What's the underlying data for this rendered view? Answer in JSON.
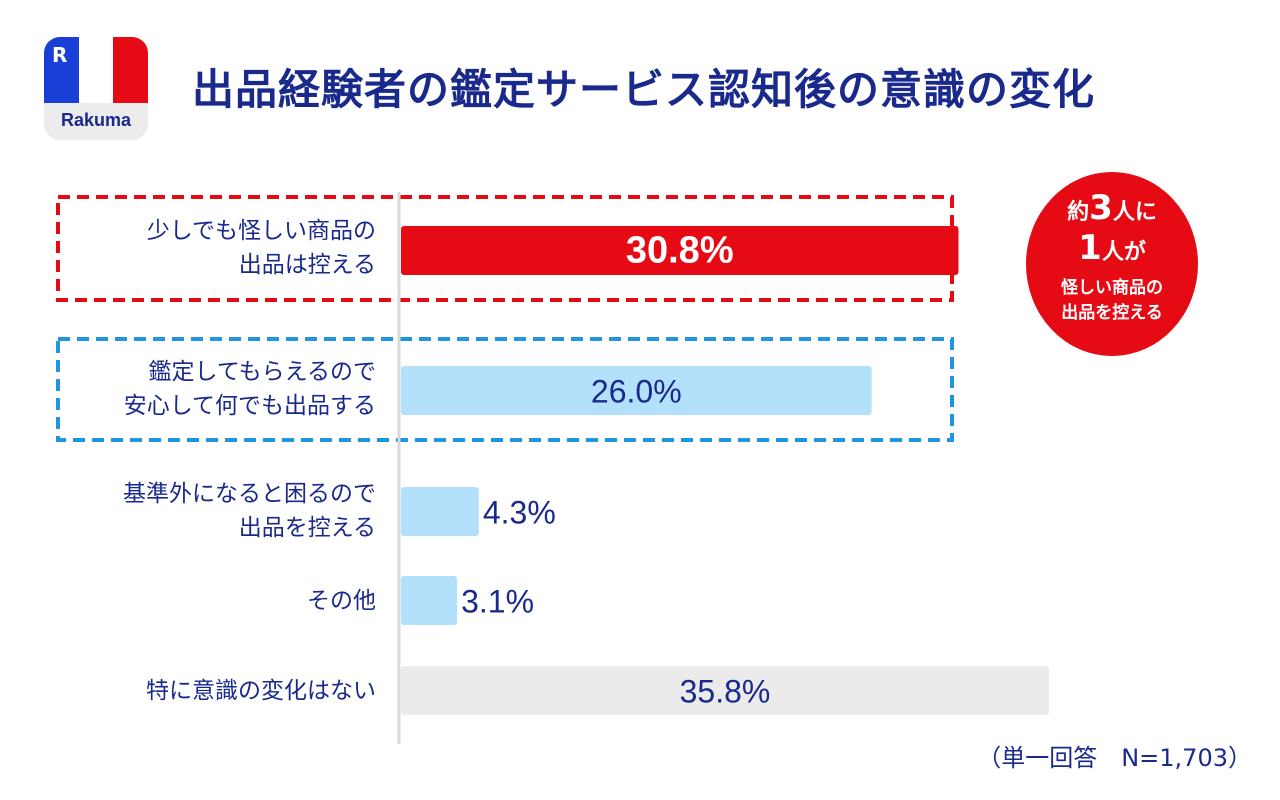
{
  "logo": {
    "mark": "R",
    "name": "Rakuma",
    "flag_colors": [
      "#1a3fd6",
      "#ffffff",
      "#e60a14"
    ]
  },
  "title": "出品経験者の鑑定サービス認知後の意識の変化",
  "badge": {
    "prefix": "約",
    "num1": "3",
    "mid1": "人に",
    "num2": "1",
    "mid2": "人が",
    "line3": "怪しい商品の\n出品を控える"
  },
  "note": "（単一回答　N=1,703）",
  "colors": {
    "highlight": "#e60a14",
    "light_blue": "#b3e0fa",
    "gray": "#ebebeb",
    "blue_text": "#1a2a8c",
    "dashed_red": "#e60a14",
    "dashed_blue": "#2196e0"
  },
  "chart_data": {
    "type": "bar",
    "orientation": "horizontal",
    "categories": [
      "少しでも怪しい商品の\n出品は控える",
      "鑑定してもらえるので\n安心して何でも出品する",
      "基準外になると困るので\n出品を控える",
      "その他",
      "特に意識の変化はない"
    ],
    "values": [
      30.8,
      26.0,
      4.3,
      3.1,
      35.8
    ],
    "value_labels": [
      "30.8%",
      "26.0%",
      "4.3%",
      "3.1%",
      "35.8%"
    ],
    "unit": "%",
    "bar_colors": [
      "#e60a14",
      "#b3e0fa",
      "#b3e0fa",
      "#b3e0fa",
      "#ebebeb"
    ],
    "highlighted": [
      0,
      1
    ],
    "xlim": [
      0,
      40
    ]
  }
}
